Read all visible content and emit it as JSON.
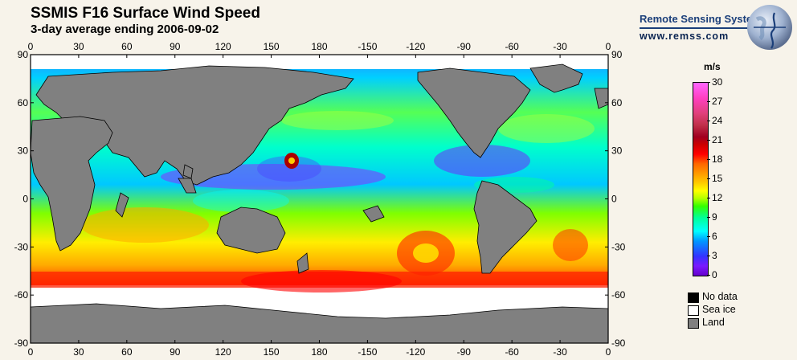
{
  "title": "SSMIS F16 Surface Wind Speed",
  "subtitle": "3-day average ending 2006-09-02",
  "brand": {
    "name": "Remote Sensing Systems",
    "url": "www.remss.com"
  },
  "map": {
    "lon_ticks": [
      "0",
      "30",
      "60",
      "90",
      "120",
      "150",
      "180",
      "-150",
      "-120",
      "-90",
      "-60",
      "-30",
      "0"
    ],
    "lat_ticks": [
      "90",
      "60",
      "30",
      "0",
      "-30",
      "-60",
      "-90"
    ],
    "colors": {
      "land": "#808080",
      "sea_ice": "#ffffff",
      "no_data": "#000000"
    }
  },
  "colorbar": {
    "unit": "m/s",
    "labels": [
      "30",
      "27",
      "24",
      "21",
      "18",
      "15",
      "12",
      "9",
      "6",
      "3",
      "0"
    ],
    "min": 0,
    "max": 30
  },
  "legend": [
    {
      "label": "No data",
      "color": "#000000"
    },
    {
      "label": "Sea ice",
      "color": "#ffffff"
    },
    {
      "label": "Land",
      "color": "#808080"
    }
  ]
}
